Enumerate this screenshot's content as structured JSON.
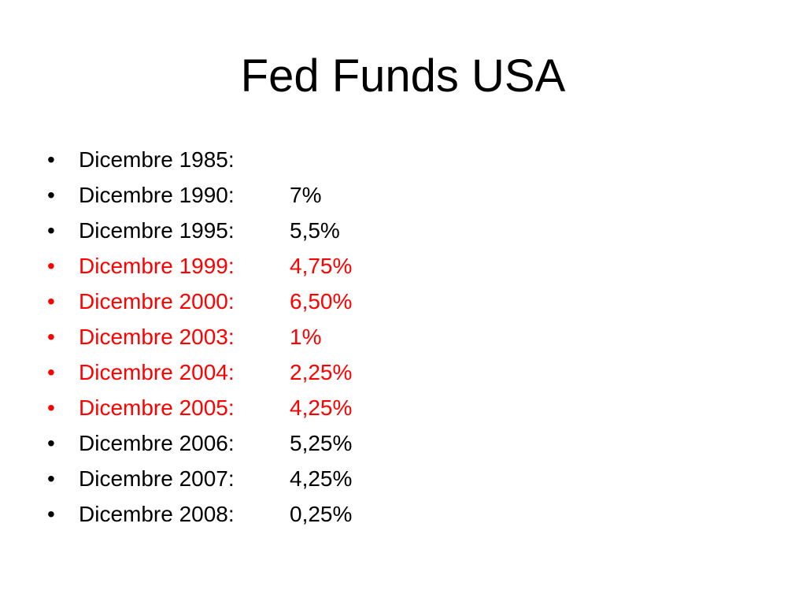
{
  "slide": {
    "title": "Fed Funds USA",
    "bullet": "•",
    "colors": {
      "normal": "#000000",
      "highlight": "#ff0000"
    },
    "items": [
      {
        "label": "Dicembre 1985:",
        "value": "",
        "highlight": false
      },
      {
        "label": "Dicembre 1990:",
        "value": "7%",
        "highlight": false
      },
      {
        "label": "Dicembre 1995:",
        "value": "5,5%",
        "highlight": false
      },
      {
        "label": "Dicembre 1999:",
        "value": "4,75%",
        "highlight": true
      },
      {
        "label": "Dicembre 2000:",
        "value": "6,50%",
        "highlight": true
      },
      {
        "label": "Dicembre 2003:",
        "value": "1%",
        "highlight": true
      },
      {
        "label": "Dicembre 2004:",
        "value": "2,25%",
        "highlight": true
      },
      {
        "label": "Dicembre 2005:",
        "value": "4,25%",
        "highlight": true
      },
      {
        "label": "Dicembre 2006:",
        "value": "5,25%",
        "highlight": false
      },
      {
        "label": "Dicembre 2007:",
        "value": "4,25%",
        "highlight": false
      },
      {
        "label": "Dicembre 2008:",
        "value": "0,25%",
        "highlight": false
      }
    ]
  }
}
